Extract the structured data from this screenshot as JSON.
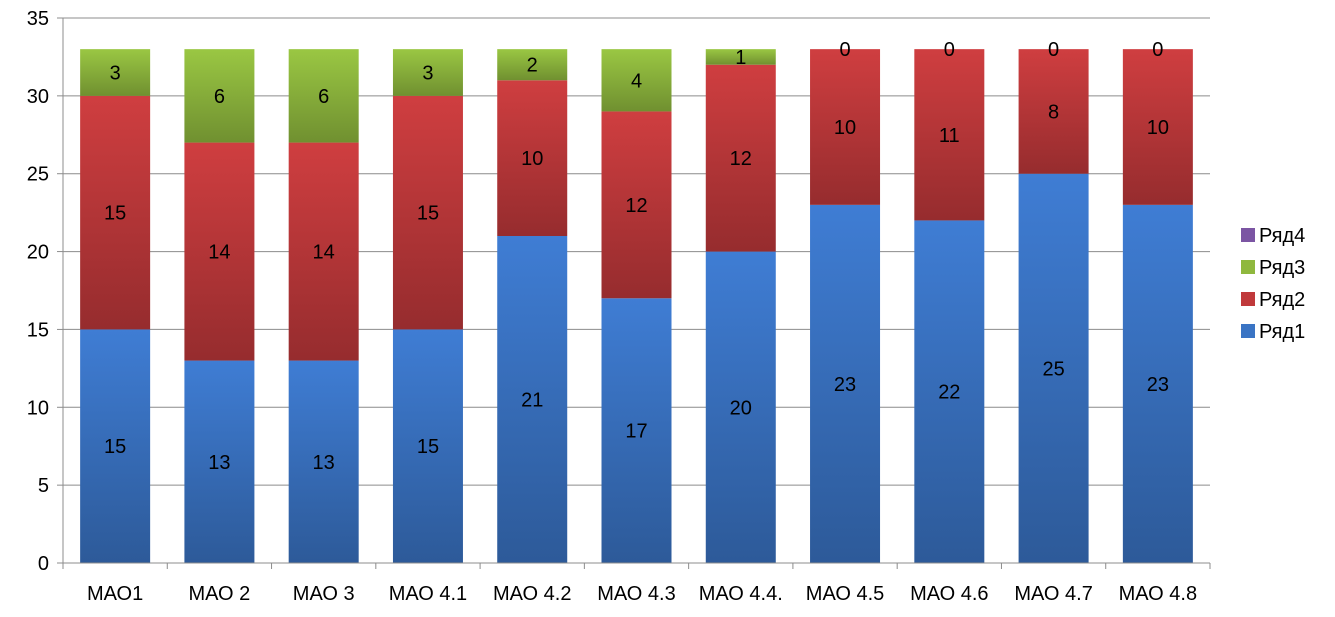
{
  "chart_data": {
    "type": "bar",
    "stacked": true,
    "categories": [
      "МАО1",
      "МАО 2",
      "МАО 3",
      "МАО 4.1",
      "МАО 4.2",
      "МАО 4.3",
      "МАО 4.4.",
      "МАО 4.5",
      "МАО 4.6",
      "МАО 4.7",
      "МАО 4.8"
    ],
    "series": [
      {
        "name": "Ряд1",
        "color": "#3A74C4",
        "values": [
          15,
          13,
          13,
          15,
          21,
          17,
          20,
          23,
          22,
          25,
          23
        ]
      },
      {
        "name": "Ряд2",
        "color": "#C0393B",
        "values": [
          15,
          14,
          14,
          15,
          10,
          12,
          12,
          10,
          11,
          8,
          10
        ]
      },
      {
        "name": "Ряд3",
        "color": "#8FB83E",
        "values": [
          3,
          6,
          6,
          3,
          2,
          4,
          1,
          0,
          0,
          0,
          0
        ]
      },
      {
        "name": "Ряд4",
        "color": "#7B55A3",
        "values": [
          0,
          0,
          0,
          0,
          0,
          0,
          0,
          0,
          0,
          0,
          0
        ]
      }
    ],
    "legend_order": [
      "Ряд4",
      "Ряд3",
      "Ряд2",
      "Ряд1"
    ],
    "yticks": [
      "0",
      "5",
      "10",
      "15",
      "20",
      "25",
      "30",
      "35"
    ],
    "ylim": [
      0,
      35
    ],
    "grid": true,
    "legend_position": "right",
    "title": "",
    "xlabel": "",
    "ylabel": ""
  }
}
